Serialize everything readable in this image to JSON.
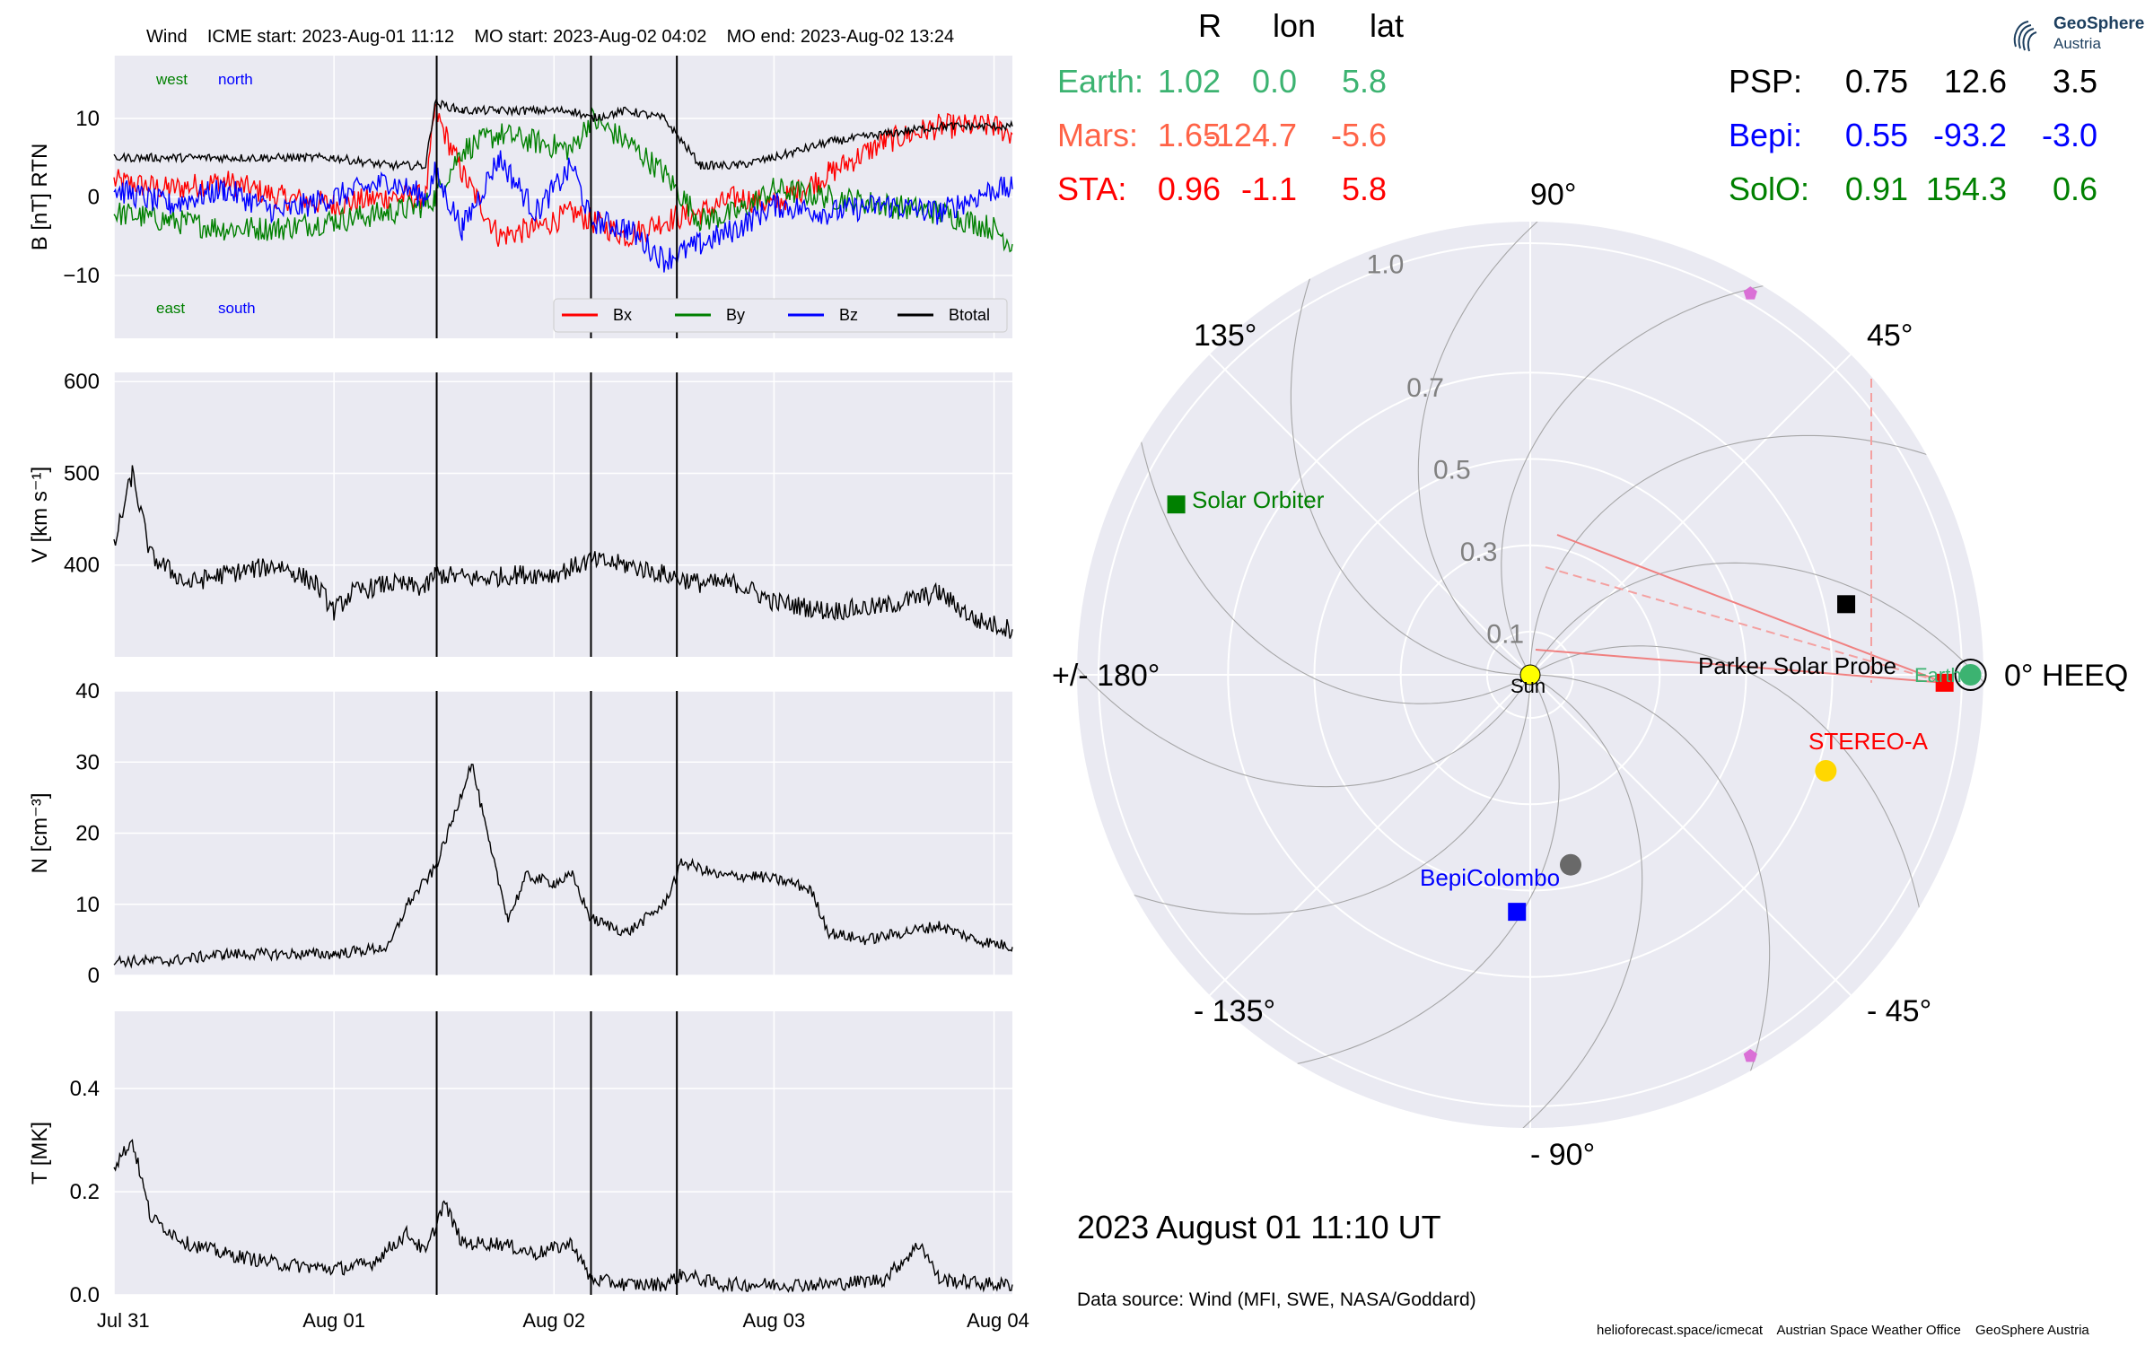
{
  "header": {
    "spacecraft": "Wind",
    "icme_start": "ICME start: 2023-Aug-01 11:12",
    "mo_start": "MO start: 2023-Aug-02 04:02",
    "mo_end": "MO end: 2023-Aug-02 13:24"
  },
  "colors": {
    "panel_bg": "#eaeaf2",
    "bx": "#ff0000",
    "by": "#008000",
    "bz": "#0000ff",
    "btotal": "#000000",
    "earth": "#3cb371",
    "mars": "#ff6347",
    "sta": "#ff0000",
    "psp": "#000000",
    "bepi": "#0000ff",
    "solo": "#008000"
  },
  "positions_table": {
    "columns": [
      "R",
      "lon",
      "lat"
    ],
    "rows": [
      {
        "name": "Earth:",
        "R": "1.02",
        "lon": "0.0",
        "lat": "5.8",
        "color": "#3cb371"
      },
      {
        "name": "Mars:",
        "R": "1.65",
        "lon": "-124.7",
        "lat": "-5.6",
        "color": "#ff6347"
      },
      {
        "name": "STA:",
        "R": "0.96",
        "lon": "-1.1",
        "lat": "5.8",
        "color": "#ff0000"
      },
      {
        "name": "PSP:",
        "R": "0.75",
        "lon": "12.6",
        "lat": "3.5",
        "color": "#000000"
      },
      {
        "name": "Bepi:",
        "R": "0.55",
        "lon": "-93.2",
        "lat": "-3.0",
        "color": "#0000ff"
      },
      {
        "name": "SolO:",
        "R": "0.91",
        "lon": "154.3",
        "lat": "0.6",
        "color": "#008000"
      }
    ]
  },
  "logo": {
    "line1": "GeoSphere",
    "line2": "Austria"
  },
  "chart_data": [
    {
      "type": "line",
      "id": "magnetic_field",
      "ylabel": "B [nT] RTN",
      "ylim": [
        -18,
        18
      ],
      "yticks": [
        10,
        0,
        -10
      ],
      "ytick_labels": [
        "10",
        "0",
        "−10"
      ],
      "grid": true,
      "x_range": [
        "2023-07-31 00:00",
        "2023-08-04 02:00"
      ],
      "event_lines": [
        "2023-08-01 11:12",
        "2023-08-02 04:02",
        "2023-08-02 13:24"
      ],
      "corner_labels": {
        "west": "west",
        "north": "north",
        "east": "east",
        "south": "south"
      },
      "legend_position": "lower right",
      "series": [
        {
          "name": "Bx",
          "color": "#ff0000",
          "points": [
            [
              "07-31 00",
              2
            ],
            [
              "07-31 06",
              1
            ],
            [
              "07-31 12",
              2
            ],
            [
              "07-31 18",
              0
            ],
            [
              "08-01 00",
              -1
            ],
            [
              "08-01 06",
              0
            ],
            [
              "08-01 10",
              0
            ],
            [
              "08-01 11",
              11
            ],
            [
              "08-01 14",
              3
            ],
            [
              "08-01 18",
              -5
            ],
            [
              "08-01 22",
              -4
            ],
            [
              "08-02 02",
              -2
            ],
            [
              "08-02 04",
              -3
            ],
            [
              "08-02 08",
              -5
            ],
            [
              "08-02 12",
              -3
            ],
            [
              "08-02 16",
              -2
            ],
            [
              "08-02 20",
              0
            ],
            [
              "08-03 00",
              -1
            ],
            [
              "08-03 06",
              3
            ],
            [
              "08-03 12",
              7
            ],
            [
              "08-03 18",
              9
            ],
            [
              "08-04 00",
              9
            ],
            [
              "08-04 02",
              8
            ]
          ]
        },
        {
          "name": "By",
          "color": "#008000",
          "points": [
            [
              "07-31 00",
              -2
            ],
            [
              "07-31 06",
              -3
            ],
            [
              "07-31 12",
              -4
            ],
            [
              "07-31 18",
              -4
            ],
            [
              "08-01 00",
              -3
            ],
            [
              "08-01 06",
              -2
            ],
            [
              "08-01 10",
              -1
            ],
            [
              "08-01 11",
              0
            ],
            [
              "08-01 14",
              6
            ],
            [
              "08-01 18",
              8
            ],
            [
              "08-01 22",
              7
            ],
            [
              "08-02 02",
              6
            ],
            [
              "08-02 04",
              10
            ],
            [
              "08-02 08",
              7
            ],
            [
              "08-02 12",
              3
            ],
            [
              "08-02 16",
              -3
            ],
            [
              "08-02 20",
              -2
            ],
            [
              "08-03 00",
              1
            ],
            [
              "08-03 06",
              0
            ],
            [
              "08-03 12",
              -1
            ],
            [
              "08-03 18",
              -2
            ],
            [
              "08-04 00",
              -4
            ],
            [
              "08-04 02",
              -6
            ]
          ]
        },
        {
          "name": "Bz",
          "color": "#0000ff",
          "points": [
            [
              "07-31 00",
              1
            ],
            [
              "07-31 06",
              -1
            ],
            [
              "07-31 12",
              1
            ],
            [
              "07-31 18",
              -2
            ],
            [
              "08-01 00",
              0
            ],
            [
              "08-01 06",
              2
            ],
            [
              "08-01 10",
              0
            ],
            [
              "08-01 11",
              3
            ],
            [
              "08-01 14",
              -4
            ],
            [
              "08-01 18",
              5
            ],
            [
              "08-01 22",
              -2
            ],
            [
              "08-02 02",
              4
            ],
            [
              "08-02 04",
              -3
            ],
            [
              "08-02 08",
              -4
            ],
            [
              "08-02 12",
              -8
            ],
            [
              "08-02 16",
              -6
            ],
            [
              "08-02 20",
              -4
            ],
            [
              "08-03 00",
              -1
            ],
            [
              "08-03 06",
              -2
            ],
            [
              "08-03 12",
              -1
            ],
            [
              "08-03 18",
              -2
            ],
            [
              "08-04 00",
              1
            ],
            [
              "08-04 02",
              1
            ]
          ]
        },
        {
          "name": "Btotal",
          "color": "#000000",
          "points": [
            [
              "07-31 00",
              5
            ],
            [
              "07-31 06",
              5
            ],
            [
              "07-31 12",
              5
            ],
            [
              "07-31 18",
              5
            ],
            [
              "08-01 00",
              5
            ],
            [
              "08-01 06",
              4
            ],
            [
              "08-01 10",
              4
            ],
            [
              "08-01 11",
              12
            ],
            [
              "08-01 14",
              11
            ],
            [
              "08-01 18",
              11
            ],
            [
              "08-01 22",
              11
            ],
            [
              "08-02 02",
              11
            ],
            [
              "08-02 04",
              10
            ],
            [
              "08-02 08",
              11
            ],
            [
              "08-02 12",
              10
            ],
            [
              "08-02 16",
              4
            ],
            [
              "08-02 20",
              4
            ],
            [
              "08-03 00",
              5
            ],
            [
              "08-03 06",
              7
            ],
            [
              "08-03 12",
              8
            ],
            [
              "08-03 18",
              9
            ],
            [
              "08-04 00",
              9
            ],
            [
              "08-04 02",
              9
            ]
          ]
        }
      ]
    },
    {
      "type": "line",
      "id": "speed",
      "ylabel": "V [km s⁻¹]",
      "ylim": [
        300,
        610
      ],
      "yticks": [
        600,
        500,
        400
      ],
      "ytick_labels": [
        "600",
        "500",
        "400"
      ],
      "grid": true,
      "series": [
        {
          "name": "",
          "color": "#000000",
          "points": [
            [
              "07-31 00",
              420
            ],
            [
              "07-31 02",
              500
            ],
            [
              "07-31 04",
              410
            ],
            [
              "07-31 08",
              380
            ],
            [
              "07-31 12",
              390
            ],
            [
              "07-31 18",
              400
            ],
            [
              "07-31 22",
              380
            ],
            [
              "08-01 00",
              350
            ],
            [
              "08-01 02",
              370
            ],
            [
              "08-01 06",
              380
            ],
            [
              "08-01 10",
              375
            ],
            [
              "08-01 11",
              390
            ],
            [
              "08-01 16",
              385
            ],
            [
              "08-01 20",
              390
            ],
            [
              "08-02 00",
              390
            ],
            [
              "08-02 04",
              405
            ],
            [
              "08-02 08",
              400
            ],
            [
              "08-02 12",
              390
            ],
            [
              "08-02 16",
              380
            ],
            [
              "08-02 20",
              380
            ],
            [
              "08-03 00",
              360
            ],
            [
              "08-03 06",
              350
            ],
            [
              "08-03 12",
              355
            ],
            [
              "08-03 18",
              370
            ],
            [
              "08-03 22",
              340
            ],
            [
              "08-04 00",
              335
            ],
            [
              "08-04 02",
              330
            ]
          ]
        }
      ]
    },
    {
      "type": "line",
      "id": "density",
      "ylabel": "N [cm⁻³]",
      "ylim": [
        0,
        40
      ],
      "yticks": [
        40,
        30,
        20,
        10,
        0
      ],
      "ytick_labels": [
        "40",
        "30",
        "20",
        "10",
        "0"
      ],
      "grid": true,
      "series": [
        {
          "name": "",
          "color": "#000000",
          "points": [
            [
              "07-31 00",
              2
            ],
            [
              "07-31 06",
              2
            ],
            [
              "07-31 12",
              3
            ],
            [
              "07-31 18",
              3
            ],
            [
              "08-01 00",
              3
            ],
            [
              "08-01 06",
              4
            ],
            [
              "08-01 08",
              10
            ],
            [
              "08-01 11",
              15
            ],
            [
              "08-01 13",
              22
            ],
            [
              "08-01 15",
              30
            ],
            [
              "08-01 17",
              18
            ],
            [
              "08-01 19",
              8
            ],
            [
              "08-01 21",
              14
            ],
            [
              "08-02 00",
              13
            ],
            [
              "08-02 02",
              14
            ],
            [
              "08-02 04",
              8
            ],
            [
              "08-02 08",
              6
            ],
            [
              "08-02 12",
              10
            ],
            [
              "08-02 14",
              16
            ],
            [
              "08-02 18",
              14
            ],
            [
              "08-02 22",
              14
            ],
            [
              "08-03 02",
              13
            ],
            [
              "08-03 04",
              12
            ],
            [
              "08-03 06",
              6
            ],
            [
              "08-03 10",
              5
            ],
            [
              "08-03 14",
              6
            ],
            [
              "08-03 18",
              7
            ],
            [
              "08-03 22",
              5
            ],
            [
              "08-04 02",
              4
            ]
          ]
        }
      ]
    },
    {
      "type": "line",
      "id": "temperature",
      "ylabel": "T [MK]",
      "ylim": [
        0.0,
        0.55
      ],
      "yticks": [
        0.4,
        0.2,
        0.0
      ],
      "ytick_labels": [
        "0.4",
        "0.2",
        "0.0"
      ],
      "grid": true,
      "xticks": [
        "Jul 31",
        "Aug 01",
        "Aug 02",
        "Aug 03",
        "Aug 04"
      ],
      "series": [
        {
          "name": "",
          "color": "#000000",
          "points": [
            [
              "07-31 00",
              0.25
            ],
            [
              "07-31 02",
              0.3
            ],
            [
              "07-31 04",
              0.15
            ],
            [
              "07-31 08",
              0.1
            ],
            [
              "07-31 12",
              0.08
            ],
            [
              "07-31 18",
              0.06
            ],
            [
              "08-01 00",
              0.05
            ],
            [
              "08-01 04",
              0.06
            ],
            [
              "08-01 08",
              0.12
            ],
            [
              "08-01 10",
              0.08
            ],
            [
              "08-01 12",
              0.18
            ],
            [
              "08-01 14",
              0.1
            ],
            [
              "08-01 18",
              0.1
            ],
            [
              "08-01 22",
              0.08
            ],
            [
              "08-02 02",
              0.1
            ],
            [
              "08-02 04",
              0.03
            ],
            [
              "08-02 08",
              0.02
            ],
            [
              "08-02 12",
              0.02
            ],
            [
              "08-02 14",
              0.04
            ],
            [
              "08-02 18",
              0.02
            ],
            [
              "08-03 00",
              0.02
            ],
            [
              "08-03 06",
              0.02
            ],
            [
              "08-03 12",
              0.03
            ],
            [
              "08-03 16",
              0.1
            ],
            [
              "08-03 18",
              0.03
            ],
            [
              "08-04 00",
              0.02
            ],
            [
              "08-04 02",
              0.02
            ]
          ]
        }
      ]
    },
    {
      "type": "scatter",
      "id": "heeq_polar",
      "grid": true,
      "radial_ticks": [
        "0.1",
        "0.3",
        "0.5",
        "0.7",
        "1.0"
      ],
      "angle_labels": {
        "a0": "0° HEEQ",
        "a45": "45°",
        "a90": "90°",
        "a135": "135°",
        "a180": "+/- 180°",
        "am135": "- 135°",
        "am90": "- 90°",
        "am45": "- 45°"
      },
      "points": [
        {
          "name": "Sun",
          "label": "Sun",
          "lon": 0,
          "r": 0,
          "color": "#ffff00",
          "marker": "circle"
        },
        {
          "name": "Earth",
          "label": "Earth",
          "lon": 0,
          "r": 1.02,
          "color": "#3cb371",
          "marker": "circle"
        },
        {
          "name": "STEREO-A",
          "label": "STEREO-A",
          "lon": -1.1,
          "r": 0.96,
          "color": "#ff0000",
          "marker": "square"
        },
        {
          "name": "Parker Solar Probe",
          "label": "Parker Solar Probe",
          "lon": 12.6,
          "r": 0.75,
          "color": "#000000",
          "marker": "square"
        },
        {
          "name": "BepiColombo",
          "label": "BepiColombo",
          "lon": -93.2,
          "r": 0.55,
          "color": "#0000ff",
          "marker": "square"
        },
        {
          "name": "Solar Orbiter",
          "label": "Solar Orbiter",
          "lon": 154.3,
          "r": 0.91,
          "color": "#008000",
          "marker": "square"
        },
        {
          "name": "Mars",
          "label": "",
          "lon": -124.7,
          "r": 1.65,
          "color": "#ff6347",
          "marker": "circle"
        },
        {
          "name": "Venus",
          "label": "",
          "lon": -18,
          "r": 0.72,
          "color": "#ffd700",
          "marker": "circle"
        },
        {
          "name": "Mercury",
          "label": "",
          "lon": -78,
          "r": 0.45,
          "color": "#696969",
          "marker": "circle"
        },
        {
          "name": "L4",
          "label": "",
          "lon": 60,
          "r": 1.02,
          "color": "#da70d6",
          "marker": "pentagon"
        },
        {
          "name": "L5",
          "label": "",
          "lon": -60,
          "r": 1.02,
          "color": "#da70d6",
          "marker": "pentagon"
        }
      ]
    }
  ],
  "datetime": "2023 August 01  11:10 UT",
  "data_source": "Data source: Wind (MFI, SWE, NASA/Goddard)",
  "footer": [
    "helioforecast.space/icmecat",
    "Austrian Space Weather Office",
    "GeoSphere Austria"
  ]
}
